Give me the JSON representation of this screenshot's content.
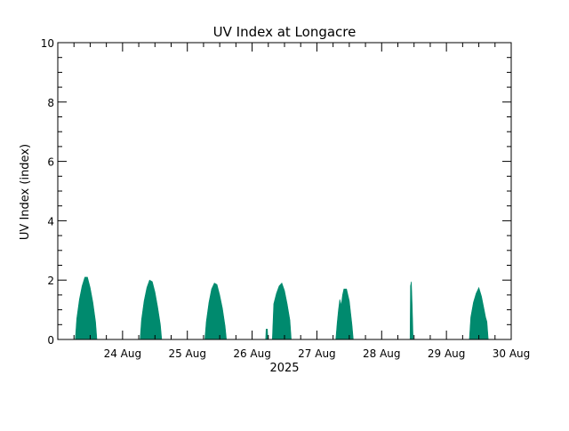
{
  "chart_data": {
    "type": "area",
    "title": "UV Index at Longacre",
    "ylabel": "UV Index (index)",
    "xlabel": "2025",
    "ylim": [
      0,
      10
    ],
    "yticks": [
      "0",
      "2",
      "4",
      "6",
      "8",
      "10"
    ],
    "xlim": [
      "2025-08-23 00:00",
      "2025-08-30 00:00"
    ],
    "xticks": [
      {
        "date": "2025-08-24",
        "label": "24 Aug"
      },
      {
        "date": "2025-08-25",
        "label": "25 Aug"
      },
      {
        "date": "2025-08-26",
        "label": "26 Aug"
      },
      {
        "date": "2025-08-27",
        "label": "27 Aug"
      },
      {
        "date": "2025-08-28",
        "label": "28 Aug"
      },
      {
        "date": "2025-08-29",
        "label": "29 Aug"
      },
      {
        "date": "2025-08-30",
        "label": "30 Aug"
      }
    ],
    "grid": false,
    "fill_color": "#008a6e",
    "series": [
      {
        "points": [
          [
            "2025-08-23 06:30",
            0.0
          ],
          [
            "2025-08-23 07:00",
            0.7
          ],
          [
            "2025-08-23 08:00",
            1.35
          ],
          [
            "2025-08-23 09:00",
            1.8
          ],
          [
            "2025-08-23 10:00",
            2.1
          ],
          [
            "2025-08-23 11:00",
            2.1
          ],
          [
            "2025-08-23 12:00",
            1.75
          ],
          [
            "2025-08-23 13:00",
            1.25
          ],
          [
            "2025-08-23 14:00",
            0.6
          ],
          [
            "2025-08-23 14:30",
            0.0
          ],
          [
            "2025-08-24 06:30",
            0.0
          ],
          [
            "2025-08-24 07:00",
            0.65
          ],
          [
            "2025-08-24 08:00",
            1.3
          ],
          [
            "2025-08-24 09:00",
            1.75
          ],
          [
            "2025-08-24 10:00",
            2.0
          ],
          [
            "2025-08-24 11:00",
            1.95
          ],
          [
            "2025-08-24 12:00",
            1.6
          ],
          [
            "2025-08-24 13:00",
            1.1
          ],
          [
            "2025-08-24 14:00",
            0.5
          ],
          [
            "2025-08-24 14:30",
            0.0
          ],
          [
            "2025-08-25 06:30",
            0.0
          ],
          [
            "2025-08-25 07:00",
            0.6
          ],
          [
            "2025-08-25 08:00",
            1.25
          ],
          [
            "2025-08-25 09:00",
            1.7
          ],
          [
            "2025-08-25 10:00",
            1.9
          ],
          [
            "2025-08-25 11:00",
            1.85
          ],
          [
            "2025-08-25 12:00",
            1.5
          ],
          [
            "2025-08-25 13:00",
            1.05
          ],
          [
            "2025-08-25 14:00",
            0.45
          ],
          [
            "2025-08-25 14:30",
            0.0
          ],
          [
            "2025-08-26 05:00",
            0.0
          ],
          [
            "2025-08-26 05:10",
            0.35
          ],
          [
            "2025-08-26 05:40",
            0.35
          ],
          [
            "2025-08-26 05:50",
            0.0
          ],
          [
            "2025-08-26 07:30",
            0.0
          ],
          [
            "2025-08-26 08:00",
            1.2
          ],
          [
            "2025-08-26 09:00",
            1.55
          ],
          [
            "2025-08-26 10:00",
            1.8
          ],
          [
            "2025-08-26 11:00",
            1.9
          ],
          [
            "2025-08-26 12:00",
            1.65
          ],
          [
            "2025-08-26 13:00",
            1.2
          ],
          [
            "2025-08-26 14:00",
            0.65
          ],
          [
            "2025-08-26 14:30",
            0.0
          ],
          [
            "2025-08-27 07:00",
            0.0
          ],
          [
            "2025-08-27 07:30",
            0.55
          ],
          [
            "2025-08-27 08:00",
            1.0
          ],
          [
            "2025-08-27 08:30",
            1.35
          ],
          [
            "2025-08-27 09:00",
            1.15
          ],
          [
            "2025-08-27 09:30",
            1.5
          ],
          [
            "2025-08-27 10:00",
            1.7
          ],
          [
            "2025-08-27 11:00",
            1.7
          ],
          [
            "2025-08-27 12:00",
            1.3
          ],
          [
            "2025-08-27 12:30",
            0.9
          ],
          [
            "2025-08-27 13:00",
            0.5
          ],
          [
            "2025-08-27 13:30",
            0.0
          ],
          [
            "2025-08-28 10:30",
            0.0
          ],
          [
            "2025-08-28 10:40",
            1.8
          ],
          [
            "2025-08-28 11:00",
            1.95
          ],
          [
            "2025-08-28 11:20",
            1.1
          ],
          [
            "2025-08-28 11:40",
            0.0
          ],
          [
            "2025-08-29 08:30",
            0.0
          ],
          [
            "2025-08-29 09:00",
            0.75
          ],
          [
            "2025-08-29 10:00",
            1.25
          ],
          [
            "2025-08-29 11:00",
            1.55
          ],
          [
            "2025-08-29 12:00",
            1.75
          ],
          [
            "2025-08-29 13:00",
            1.45
          ],
          [
            "2025-08-29 14:00",
            1.0
          ],
          [
            "2025-08-29 14:30",
            0.75
          ],
          [
            "2025-08-29 15:00",
            0.6
          ],
          [
            "2025-08-29 15:30",
            0.0
          ]
        ]
      }
    ]
  }
}
